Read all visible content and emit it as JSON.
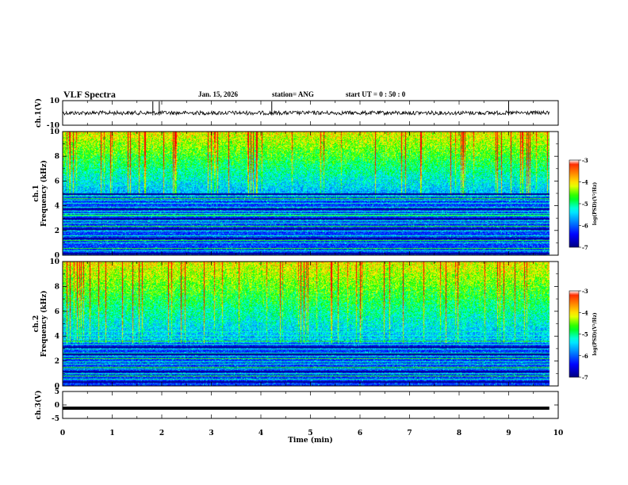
{
  "header": {
    "title": "VLF Spectra",
    "date": "Jan. 15, 2026",
    "station": "station= ANG",
    "start": "start  UT =   0 : 50 : 0"
  },
  "chart_data": {
    "type": "heatmap",
    "title": "VLF Spectra",
    "xlabel": "Time  (min)",
    "xlim": [
      0,
      10
    ],
    "x_ticks": [
      "0",
      "1",
      "2",
      "3",
      "4",
      "5",
      "6",
      "7",
      "8",
      "9",
      "10"
    ],
    "panels": [
      {
        "id": "ch1_waveform",
        "type": "line",
        "ylabel": "ch.1(V)",
        "ylim": [
          -10,
          10
        ],
        "y_ticks": [
          "10",
          "-10"
        ],
        "baseline": 0,
        "spike_times_min": [
          1.82,
          1.95,
          4.22,
          9.0
        ],
        "noise_color": "#000000"
      },
      {
        "id": "ch1_spectrogram",
        "type": "heatmap",
        "ylabel": "ch.1\nFrequency  (kHz)",
        "ylim": [
          0,
          10
        ],
        "y_ticks": [
          "0",
          "2",
          "4",
          "6",
          "8",
          "10"
        ],
        "data_extent_min": [
          0,
          9.82
        ],
        "colorbar": {
          "label": "log(PSD)(V²/Hz)",
          "range": [
            -7,
            -3
          ],
          "ticks": [
            "-3",
            "-4",
            "-5",
            "-6",
            "-7"
          ]
        },
        "band_lines_khz": [
          0.4,
          0.6,
          1.0,
          1.2,
          1.6,
          2.0,
          2.4,
          2.6,
          2.8,
          3.2,
          3.4,
          3.6,
          3.9,
          4.2,
          4.5,
          4.8
        ],
        "bright_lines_khz": [
          0.6,
          1.2,
          2.4,
          3.3,
          4.6
        ],
        "dark_gaps_khz": [
          0.2,
          1.4,
          2.2,
          3.0,
          3.8,
          5.0
        ],
        "dark_lower_bound_khz": 4.8
      },
      {
        "id": "ch2_spectrogram",
        "type": "heatmap",
        "ylabel": "ch.2\nFrequency  (kHz)",
        "ylim": [
          0,
          10
        ],
        "y_ticks": [
          "0",
          "2",
          "4",
          "6",
          "8",
          "10"
        ],
        "data_extent_min": [
          0,
          9.82
        ],
        "colorbar": {
          "label": "log(PSD)(V²/Hz)",
          "range": [
            -7,
            -3
          ],
          "ticks": [
            "-3",
            "-4",
            "-5",
            "-6",
            "-7"
          ]
        },
        "band_lines_khz": [
          0.3,
          0.6,
          1.0,
          1.4,
          1.8,
          2.0,
          2.4,
          2.7,
          3.0,
          3.4,
          3.8,
          4.1,
          4.4
        ],
        "bright_lines_khz": [
          0.8,
          1.5,
          2.2,
          3.6
        ],
        "dark_gaps_khz": [
          0.4,
          1.2,
          2.6,
          3.2
        ],
        "dark_lower_bound_khz": 3.5
      },
      {
        "id": "ch3_waveform",
        "type": "line",
        "ylabel": "ch.3(V)",
        "ylim": [
          -5,
          5
        ],
        "y_ticks": [
          "5",
          "0",
          "-5"
        ],
        "baseline": -1.2,
        "trace_color": "#000000"
      }
    ],
    "colormap": [
      "#000080",
      "#0000ff",
      "#0080ff",
      "#00ffff",
      "#00ff00",
      "#ffff00",
      "#ff8000",
      "#ff0000",
      "#ffffff"
    ],
    "grid": false
  }
}
